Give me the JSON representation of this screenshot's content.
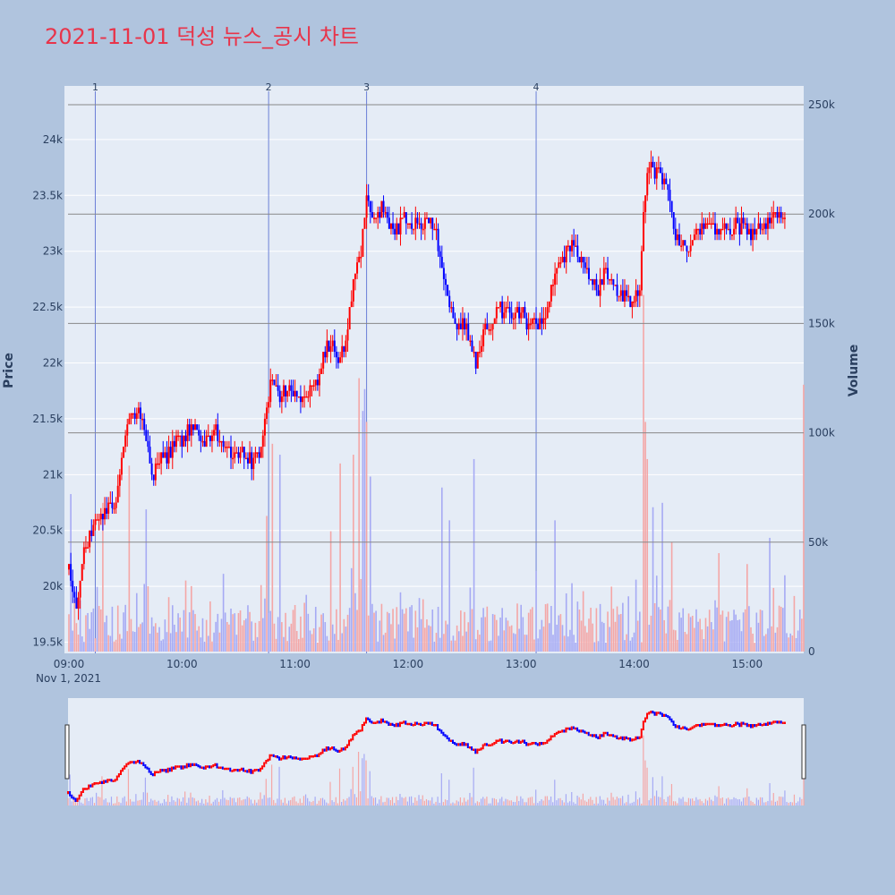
{
  "chart_data": {
    "type": "candlestick",
    "title": "2021-11-01 덕성 뉴스_공시 차트",
    "date_label": "Nov 1, 2021",
    "price_axis": {
      "title": "Price",
      "range": [
        19400,
        24480
      ],
      "ticks": [
        19500,
        20000,
        20500,
        21000,
        21500,
        22000,
        22500,
        23000,
        23500,
        24000
      ],
      "tick_labels": [
        "19.5k",
        "20k",
        "20.5k",
        "21k",
        "21.5k",
        "22k",
        "22.5k",
        "23k",
        "23.5k",
        "24k"
      ]
    },
    "volume_axis": {
      "title": "Volume",
      "range": [
        0,
        250000
      ],
      "ticks": [
        0,
        50000,
        100000,
        150000,
        200000,
        250000
      ],
      "tick_labels": [
        "0",
        "50k",
        "100k",
        "150k",
        "200k",
        "250k"
      ]
    },
    "time_axis": {
      "start": "09:00",
      "end": "15:30",
      "tick_labels": [
        "09:00",
        "10:00",
        "11:00",
        "12:00",
        "13:00",
        "14:00",
        "15:00"
      ]
    },
    "news_markers": [
      {
        "label": "1",
        "time": "09:14"
      },
      {
        "label": "2",
        "time": "10:46"
      },
      {
        "label": "3",
        "time": "11:38"
      },
      {
        "label": "4",
        "time": "13:08"
      }
    ],
    "price_path": [
      [
        "09:00",
        20150
      ],
      [
        "09:04",
        19800
      ],
      [
        "09:07",
        20250
      ],
      [
        "09:11",
        20450
      ],
      [
        "09:15",
        20600
      ],
      [
        "09:20",
        20650
      ],
      [
        "09:25",
        20800
      ],
      [
        "09:29",
        21250
      ],
      [
        "09:33",
        21600
      ],
      [
        "09:37",
        21550
      ],
      [
        "09:41",
        21350
      ],
      [
        "09:44",
        20950
      ],
      [
        "09:48",
        21100
      ],
      [
        "09:52",
        21150
      ],
      [
        "09:56",
        21300
      ],
      [
        "10:00",
        21300
      ],
      [
        "10:05",
        21400
      ],
      [
        "10:10",
        21300
      ],
      [
        "10:14",
        21350
      ],
      [
        "10:18",
        21400
      ],
      [
        "10:22",
        21250
      ],
      [
        "10:27",
        21150
      ],
      [
        "10:32",
        21200
      ],
      [
        "10:37",
        21100
      ],
      [
        "10:42",
        21200
      ],
      [
        "10:45",
        21550
      ],
      [
        "10:48",
        21900
      ],
      [
        "10:52",
        21700
      ],
      [
        "10:57",
        21750
      ],
      [
        "11:02",
        21700
      ],
      [
        "11:08",
        21750
      ],
      [
        "11:12",
        21800
      ],
      [
        "11:15",
        22100
      ],
      [
        "11:19",
        22200
      ],
      [
        "11:24",
        22050
      ],
      [
        "11:28",
        22250
      ],
      [
        "11:31",
        22750
      ],
      [
        "11:35",
        23000
      ],
      [
        "11:38",
        23450
      ],
      [
        "11:42",
        23300
      ],
      [
        "11:46",
        23400
      ],
      [
        "11:50",
        23250
      ],
      [
        "11:54",
        23200
      ],
      [
        "11:58",
        23300
      ],
      [
        "12:02",
        23250
      ],
      [
        "12:06",
        23200
      ],
      [
        "12:10",
        23250
      ],
      [
        "12:14",
        23200
      ],
      [
        "12:18",
        22900
      ],
      [
        "12:22",
        22550
      ],
      [
        "12:26",
        22350
      ],
      [
        "12:29",
        22350
      ],
      [
        "12:33",
        22200
      ],
      [
        "12:36",
        22000
      ],
      [
        "12:40",
        22250
      ],
      [
        "12:44",
        22350
      ],
      [
        "12:48",
        22450
      ],
      [
        "12:52",
        22500
      ],
      [
        "12:57",
        22450
      ],
      [
        "13:02",
        22400
      ],
      [
        "13:07",
        22350
      ],
      [
        "13:12",
        22400
      ],
      [
        "13:16",
        22650
      ],
      [
        "13:20",
        22950
      ],
      [
        "13:24",
        23000
      ],
      [
        "13:28",
        23050
      ],
      [
        "13:32",
        22950
      ],
      [
        "13:36",
        22800
      ],
      [
        "13:40",
        22650
      ],
      [
        "13:44",
        22800
      ],
      [
        "13:48",
        22750
      ],
      [
        "13:52",
        22600
      ],
      [
        "13:56",
        22550
      ],
      [
        "14:00",
        22550
      ],
      [
        "14:03",
        22650
      ],
      [
        "14:05",
        23350
      ],
      [
        "14:08",
        23800
      ],
      [
        "14:12",
        23700
      ],
      [
        "14:16",
        23600
      ],
      [
        "14:19",
        23500
      ],
      [
        "14:22",
        23150
      ],
      [
        "14:26",
        23050
      ],
      [
        "14:30",
        23100
      ],
      [
        "14:35",
        23150
      ],
      [
        "14:40",
        23250
      ],
      [
        "14:45",
        23200
      ],
      [
        "14:50",
        23150
      ],
      [
        "14:55",
        23250
      ],
      [
        "15:00",
        23200
      ],
      [
        "15:05",
        23150
      ],
      [
        "15:10",
        23250
      ],
      [
        "15:15",
        23300
      ],
      [
        "15:20",
        23350
      ]
    ],
    "volume_spikes": [
      {
        "time": "09:01",
        "value": 72000,
        "color": "blue"
      },
      {
        "time": "09:18",
        "value": 68000,
        "color": "red"
      },
      {
        "time": "09:32",
        "value": 85000,
        "color": "red"
      },
      {
        "time": "09:41",
        "value": 65000,
        "color": "blue"
      },
      {
        "time": "10:45",
        "value": 62000,
        "color": "red"
      },
      {
        "time": "10:48",
        "value": 95000,
        "color": "red"
      },
      {
        "time": "10:52",
        "value": 90000,
        "color": "blue"
      },
      {
        "time": "11:19",
        "value": 55000,
        "color": "red"
      },
      {
        "time": "11:24",
        "value": 86000,
        "color": "red"
      },
      {
        "time": "11:31",
        "value": 90000,
        "color": "red"
      },
      {
        "time": "11:34",
        "value": 125000,
        "color": "red"
      },
      {
        "time": "11:36",
        "value": 110000,
        "color": "blue"
      },
      {
        "time": "11:37",
        "value": 120000,
        "color": "blue"
      },
      {
        "time": "11:38",
        "value": 105000,
        "color": "red"
      },
      {
        "time": "11:40",
        "value": 80000,
        "color": "blue"
      },
      {
        "time": "12:18",
        "value": 75000,
        "color": "blue"
      },
      {
        "time": "12:22",
        "value": 60000,
        "color": "blue"
      },
      {
        "time": "12:35",
        "value": 88000,
        "color": "blue"
      },
      {
        "time": "13:18",
        "value": 60000,
        "color": "blue"
      },
      {
        "time": "14:05",
        "value": 163000,
        "color": "red"
      },
      {
        "time": "14:06",
        "value": 105000,
        "color": "red"
      },
      {
        "time": "14:07",
        "value": 88000,
        "color": "red"
      },
      {
        "time": "14:10",
        "value": 66000,
        "color": "blue"
      },
      {
        "time": "14:15",
        "value": 68000,
        "color": "blue"
      },
      {
        "time": "14:20",
        "value": 50000,
        "color": "red"
      },
      {
        "time": "14:45",
        "value": 45000,
        "color": "red"
      },
      {
        "time": "15:00",
        "value": 40000,
        "color": "red"
      },
      {
        "time": "15:12",
        "value": 52000,
        "color": "blue"
      },
      {
        "time": "15:30",
        "value": 122000,
        "color": "red"
      }
    ],
    "colors": {
      "up": "#ff0000",
      "down": "#0000ff",
      "up_volume": "#f4a6a6",
      "down_volume": "#a6aaf4",
      "plot_bg": "#e5ecf6",
      "paper_bg": "#b0c4de",
      "grid": "#ffffff",
      "news_line": "#6b7fd7",
      "volume_grid": "#888888"
    },
    "legend": "none",
    "grid": true,
    "range_slider": true
  }
}
